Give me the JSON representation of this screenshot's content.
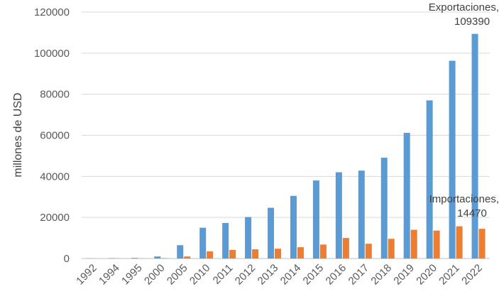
{
  "chart_data": {
    "type": "bar",
    "title": "",
    "xlabel": "",
    "ylabel": "millones de USD",
    "ylim": [
      0,
      120000
    ],
    "yticks": [
      0,
      20000,
      40000,
      60000,
      80000,
      100000,
      120000
    ],
    "grid": true,
    "legend": "none",
    "categories": [
      "1992",
      "1994",
      "1995",
      "2000",
      "2005",
      "2010",
      "2011",
      "2012",
      "2013",
      "2014",
      "2015",
      "2016",
      "2017",
      "2018",
      "2019",
      "2020",
      "2021",
      "2022"
    ],
    "series": [
      {
        "name": "Exportaciones",
        "color": "#5b9bd5",
        "values": [
          100,
          200,
          300,
          1000,
          6500,
          15000,
          17300,
          20200,
          24700,
          30500,
          38000,
          42000,
          42800,
          49100,
          61200,
          77000,
          96300,
          109390
        ]
      },
      {
        "name": "Importaciones",
        "color": "#ed7d31",
        "values": [
          50,
          60,
          80,
          200,
          1000,
          3500,
          4200,
          4500,
          4800,
          5500,
          6800,
          10000,
          7200,
          9600,
          14000,
          13600,
          15700,
          14470
        ]
      }
    ],
    "annotations": [
      {
        "series": "Exportaciones",
        "category": "2022",
        "line1": "Exportaciones,",
        "line2": "109390"
      },
      {
        "series": "Importaciones",
        "category": "2022",
        "line1": "Importaciones,",
        "line2": "14470"
      }
    ]
  }
}
